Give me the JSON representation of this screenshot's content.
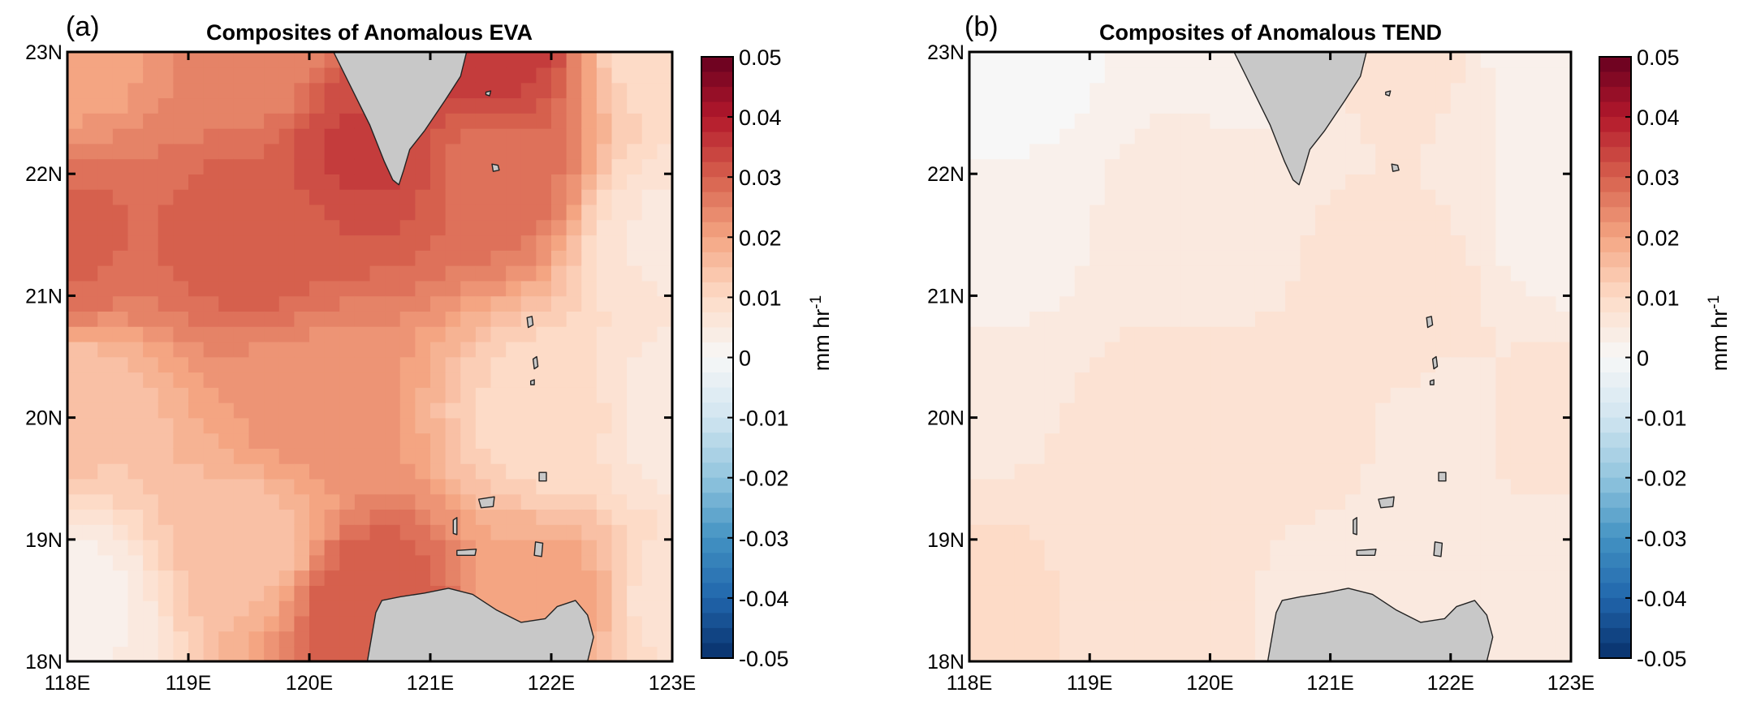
{
  "chart_data": [
    {
      "type": "heatmap",
      "panel_label": "(a)",
      "title": "Composites of Anomalous EVA",
      "xlim": [
        118,
        123
      ],
      "ylim": [
        18,
        23
      ],
      "xticks": [
        "118E",
        "119E",
        "120E",
        "121E",
        "122E",
        "123E"
      ],
      "yticks": [
        "18N",
        "19N",
        "20N",
        "21N",
        "22N",
        "23N"
      ],
      "colorbar": {
        "range": [
          -0.05,
          0.05
        ],
        "ticks": [
          "0.05",
          "0.04",
          "0.03",
          "0.02",
          "0.01",
          "0",
          "-0.01",
          "-0.02",
          "-0.03",
          "-0.04",
          "-0.05"
        ],
        "units": "mm hr",
        "units_superscript": "-1",
        "colormap": "blue-white-red"
      },
      "field_samples": [
        {
          "lon": 118.0,
          "lat": 23.0,
          "value": 0.02
        },
        {
          "lon": 119.5,
          "lat": 23.0,
          "value": 0.024
        },
        {
          "lon": 121.5,
          "lat": 23.0,
          "value": 0.035
        },
        {
          "lon": 123.0,
          "lat": 23.0,
          "value": 0.01
        },
        {
          "lon": 118.0,
          "lat": 21.5,
          "value": 0.029
        },
        {
          "lon": 119.5,
          "lat": 21.5,
          "value": 0.03
        },
        {
          "lon": 120.5,
          "lat": 22.2,
          "value": 0.034
        },
        {
          "lon": 121.5,
          "lat": 22.0,
          "value": 0.028
        },
        {
          "lon": 123.0,
          "lat": 21.5,
          "value": 0.006
        },
        {
          "lon": 118.0,
          "lat": 20.0,
          "value": 0.014
        },
        {
          "lon": 120.0,
          "lat": 20.0,
          "value": 0.022
        },
        {
          "lon": 122.0,
          "lat": 20.0,
          "value": 0.01
        },
        {
          "lon": 123.0,
          "lat": 20.0,
          "value": 0.005
        },
        {
          "lon": 118.0,
          "lat": 18.5,
          "value": 0.003
        },
        {
          "lon": 119.5,
          "lat": 19.0,
          "value": 0.015
        },
        {
          "lon": 120.5,
          "lat": 18.5,
          "value": 0.031
        },
        {
          "lon": 122.0,
          "lat": 18.5,
          "value": 0.02
        },
        {
          "lon": 123.0,
          "lat": 18.5,
          "value": 0.008
        }
      ]
    },
    {
      "type": "heatmap",
      "panel_label": "(b)",
      "title": "Composites of Anomalous TEND",
      "xlim": [
        118,
        123
      ],
      "ylim": [
        18,
        23
      ],
      "xticks": [
        "118E",
        "119E",
        "120E",
        "121E",
        "122E",
        "123E"
      ],
      "yticks": [
        "18N",
        "19N",
        "20N",
        "21N",
        "22N",
        "23N"
      ],
      "colorbar": {
        "range": [
          -0.05,
          0.05
        ],
        "ticks": [
          "0.05",
          "0.04",
          "0.03",
          "0.02",
          "0.01",
          "0",
          "-0.01",
          "-0.02",
          "-0.03",
          "-0.04",
          "-0.05"
        ],
        "units": "mm hr",
        "units_superscript": "-1",
        "colormap": "blue-white-red"
      },
      "field_samples": [
        {
          "lon": 118.0,
          "lat": 23.0,
          "value": -0.001
        },
        {
          "lon": 120.5,
          "lat": 23.0,
          "value": 0.003
        },
        {
          "lon": 121.5,
          "lat": 23.0,
          "value": 0.007
        },
        {
          "lon": 123.0,
          "lat": 23.0,
          "value": 0.002
        },
        {
          "lon": 118.0,
          "lat": 21.5,
          "value": 0.002
        },
        {
          "lon": 120.0,
          "lat": 21.5,
          "value": 0.005
        },
        {
          "lon": 121.5,
          "lat": 21.0,
          "value": 0.008
        },
        {
          "lon": 123.0,
          "lat": 21.5,
          "value": 0.003
        },
        {
          "lon": 118.0,
          "lat": 20.0,
          "value": 0.006
        },
        {
          "lon": 120.0,
          "lat": 20.0,
          "value": 0.008
        },
        {
          "lon": 122.0,
          "lat": 20.0,
          "value": 0.006
        },
        {
          "lon": 123.0,
          "lat": 20.0,
          "value": 0.007
        },
        {
          "lon": 118.0,
          "lat": 18.5,
          "value": 0.01
        },
        {
          "lon": 119.5,
          "lat": 18.8,
          "value": 0.007
        },
        {
          "lon": 121.0,
          "lat": 18.5,
          "value": 0.006
        },
        {
          "lon": 123.0,
          "lat": 18.5,
          "value": 0.004
        }
      ]
    }
  ],
  "land": {
    "color": "#c8c8c8",
    "outline": "#222222",
    "polygons": [
      {
        "name": "taiwan",
        "points": [
          [
            120.2,
            23.0
          ],
          [
            121.3,
            23.0
          ],
          [
            121.25,
            22.8
          ],
          [
            121.12,
            22.6
          ],
          [
            120.95,
            22.35
          ],
          [
            120.83,
            22.2
          ],
          [
            120.78,
            22.03
          ],
          [
            120.74,
            21.91
          ],
          [
            120.69,
            21.95
          ],
          [
            120.62,
            22.1
          ],
          [
            120.5,
            22.4
          ],
          [
            120.4,
            22.6
          ],
          [
            120.3,
            22.8
          ]
        ]
      },
      {
        "name": "luzon",
        "points": [
          [
            120.48,
            18.0
          ],
          [
            120.55,
            18.4
          ],
          [
            120.6,
            18.5
          ],
          [
            120.75,
            18.53
          ],
          [
            120.95,
            18.56
          ],
          [
            121.15,
            18.6
          ],
          [
            121.35,
            18.55
          ],
          [
            121.55,
            18.42
          ],
          [
            121.75,
            18.32
          ],
          [
            121.95,
            18.35
          ],
          [
            122.05,
            18.45
          ],
          [
            122.2,
            18.5
          ],
          [
            122.3,
            18.38
          ],
          [
            122.35,
            18.2
          ],
          [
            122.3,
            18.0
          ]
        ]
      },
      {
        "name": "green-island",
        "points": [
          [
            121.46,
            22.67
          ],
          [
            121.5,
            22.68
          ],
          [
            121.49,
            22.64
          ],
          [
            121.46,
            22.65
          ]
        ]
      },
      {
        "name": "orchid-island",
        "points": [
          [
            121.51,
            22.08
          ],
          [
            121.56,
            22.07
          ],
          [
            121.57,
            22.03
          ],
          [
            121.52,
            22.02
          ]
        ]
      },
      {
        "name": "batan-island",
        "points": [
          [
            121.85,
            20.48
          ],
          [
            121.88,
            20.5
          ],
          [
            121.89,
            20.42
          ],
          [
            121.86,
            20.4
          ]
        ]
      },
      {
        "name": "itbayat-island",
        "points": [
          [
            121.8,
            20.82
          ],
          [
            121.84,
            20.83
          ],
          [
            121.85,
            20.76
          ],
          [
            121.81,
            20.74
          ]
        ]
      },
      {
        "name": "sabtang-island",
        "points": [
          [
            121.83,
            20.3
          ],
          [
            121.86,
            20.31
          ],
          [
            121.86,
            20.27
          ],
          [
            121.83,
            20.27
          ]
        ]
      },
      {
        "name": "babuyan-claro-island",
        "points": [
          [
            121.9,
            19.55
          ],
          [
            121.96,
            19.55
          ],
          [
            121.96,
            19.48
          ],
          [
            121.9,
            19.48
          ]
        ]
      },
      {
        "name": "calayan-island",
        "points": [
          [
            121.4,
            19.33
          ],
          [
            121.53,
            19.35
          ],
          [
            121.52,
            19.27
          ],
          [
            121.42,
            19.26
          ]
        ]
      },
      {
        "name": "camiguin-island",
        "points": [
          [
            121.87,
            18.98
          ],
          [
            121.93,
            18.97
          ],
          [
            121.92,
            18.86
          ],
          [
            121.86,
            18.87
          ]
        ]
      },
      {
        "name": "dalupiri-island",
        "points": [
          [
            121.19,
            19.16
          ],
          [
            121.22,
            19.18
          ],
          [
            121.22,
            19.04
          ],
          [
            121.19,
            19.05
          ]
        ]
      },
      {
        "name": "fuga-island",
        "points": [
          [
            121.22,
            18.91
          ],
          [
            121.38,
            18.92
          ],
          [
            121.37,
            18.87
          ],
          [
            121.22,
            18.87
          ]
        ]
      }
    ]
  }
}
